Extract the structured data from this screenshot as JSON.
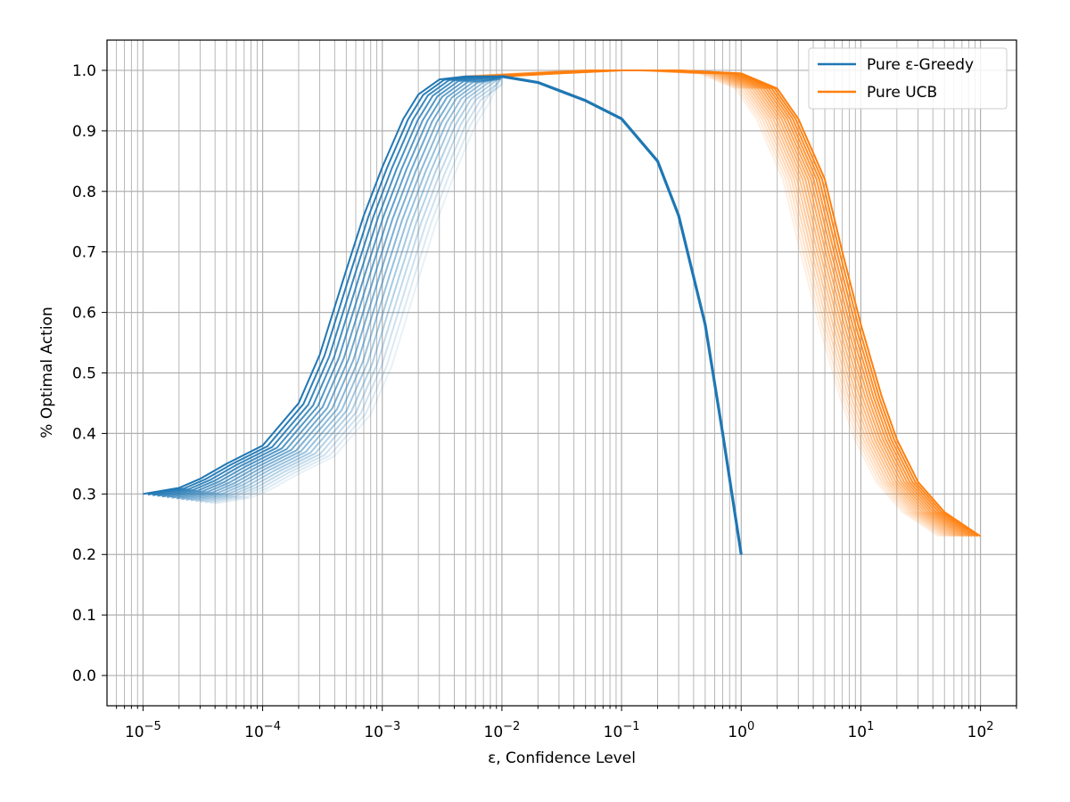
{
  "chart_data": {
    "type": "line",
    "xscale": "log",
    "xlabel": "ε, Confidence Level",
    "ylabel": "% Optimal Action",
    "xlim": [
      5e-06,
      200
    ],
    "ylim": [
      -0.05,
      1.05
    ],
    "grid": true,
    "legend_position": "top-right",
    "x_ticks": [
      {
        "value": 1e-05,
        "base": "10",
        "exp": "−5"
      },
      {
        "value": 0.0001,
        "base": "10",
        "exp": "−4"
      },
      {
        "value": 0.001,
        "base": "10",
        "exp": "−3"
      },
      {
        "value": 0.01,
        "base": "10",
        "exp": "−2"
      },
      {
        "value": 0.1,
        "base": "10",
        "exp": "−1"
      },
      {
        "value": 1,
        "base": "10",
        "exp": "0"
      },
      {
        "value": 10,
        "base": "10",
        "exp": "1"
      },
      {
        "value": 100,
        "base": "10",
        "exp": "2"
      }
    ],
    "y_ticks": [
      "0.0",
      "0.1",
      "0.2",
      "0.3",
      "0.4",
      "0.5",
      "0.6",
      "0.7",
      "0.8",
      "0.9",
      "1.0"
    ],
    "series": [
      {
        "name": "Pure ε-Greedy",
        "color": "#1f77b4",
        "family_size": 16,
        "family_shift_decades": 0.6,
        "rise_points": [
          [
            1e-05,
            0.3
          ],
          [
            2e-05,
            0.31
          ],
          [
            3e-05,
            0.325
          ],
          [
            5e-05,
            0.35
          ],
          [
            0.0001,
            0.38
          ],
          [
            0.0002,
            0.45
          ],
          [
            0.0003,
            0.53
          ],
          [
            0.0005,
            0.67
          ],
          [
            0.0007,
            0.76
          ],
          [
            0.001,
            0.84
          ],
          [
            0.0015,
            0.92
          ],
          [
            0.002,
            0.96
          ],
          [
            0.003,
            0.985
          ],
          [
            0.005,
            0.99
          ],
          [
            0.01,
            0.99
          ]
        ],
        "tail_points": [
          [
            0.01,
            0.99
          ],
          [
            0.02,
            0.98
          ],
          [
            0.05,
            0.95
          ],
          [
            0.1,
            0.92
          ],
          [
            0.2,
            0.85
          ],
          [
            0.3,
            0.76
          ],
          [
            0.5,
            0.58
          ],
          [
            0.7,
            0.4
          ],
          [
            1,
            0.2
          ]
        ]
      },
      {
        "name": "Pure UCB",
        "color": "#ff7f0e",
        "family_size": 16,
        "family_shift_decades": 0.35,
        "points": [
          [
            0.01,
            0.99
          ],
          [
            0.03,
            0.995
          ],
          [
            0.1,
            1.0
          ],
          [
            0.3,
            1.0
          ],
          [
            1,
            0.995
          ],
          [
            2,
            0.97
          ],
          [
            3,
            0.92
          ],
          [
            5,
            0.82
          ],
          [
            7,
            0.7
          ],
          [
            10,
            0.58
          ],
          [
            15,
            0.46
          ],
          [
            20,
            0.39
          ],
          [
            30,
            0.32
          ],
          [
            50,
            0.27
          ],
          [
            100,
            0.23
          ]
        ]
      }
    ]
  }
}
